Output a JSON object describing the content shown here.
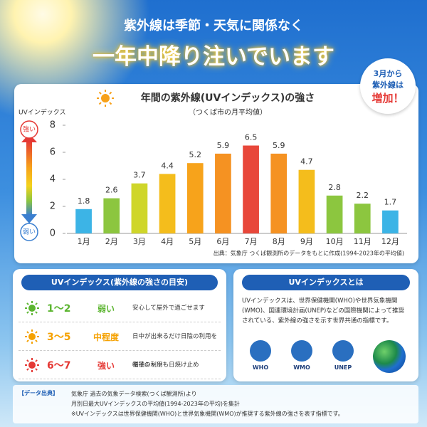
{
  "header": {
    "line1": "紫外線は季節・天気に関係なく",
    "line2": "一年中降り注いでいます"
  },
  "badge": {
    "lines": [
      "3月から",
      "紫外線は",
      "増加！"
    ]
  },
  "chart_data": {
    "type": "bar",
    "title": "年間の紫外線(UVインデックス)の強さ",
    "subtitle": "（つくば市の月平均値）",
    "y_label": "UVインデックス",
    "strong_label": "強い",
    "weak_label": "弱い",
    "categories": [
      "1月",
      "2月",
      "3月",
      "4月",
      "5月",
      "6月",
      "7月",
      "8月",
      "9月",
      "10月",
      "11月",
      "12月"
    ],
    "values": [
      1.8,
      2.6,
      3.7,
      4.4,
      5.2,
      5.9,
      6.5,
      5.9,
      4.7,
      2.8,
      2.2,
      1.7
    ],
    "colors": [
      "#3cb4e6",
      "#8cc63f",
      "#cfd62a",
      "#f4bd1c",
      "#f7a31b",
      "#f59222",
      "#e8473a",
      "#f59222",
      "#f4bd1c",
      "#8cc63f",
      "#8cc63f",
      "#3cb4e6"
    ],
    "ylim": [
      0,
      8
    ],
    "yticks": [
      0,
      2,
      4,
      6,
      8
    ],
    "source": "出典：気象庁 つくば観測所のデータをもとに作成(1994-2023年の平均値)"
  },
  "guide": {
    "title": "UVインデックス(紫外線の強さの目安)",
    "rows": [
      {
        "range": "1〜2",
        "level": "弱い",
        "description": [
          "安心して屋外で過ごせます"
        ],
        "color": "#5cb531"
      },
      {
        "range": "3〜5",
        "level": "中程度",
        "description": [
          "日中が出来るだけ日陰の利用を"
        ],
        "color": "#f5a100"
      },
      {
        "range": "6〜7",
        "level": "強い",
        "description": [
          "長袖シャツ・日焼け止め",
          "帽子の利用も"
        ],
        "color": "#e53935"
      }
    ]
  },
  "about": {
    "title": "UVインデックスとは",
    "body": "UVインデックスは、世界保健機関(WHO)や世界気象機関(WMO)、国連環境計画(UNEP)などの国際機関によって推奨されている、紫外線の強さを示す世界共通の指標です。",
    "logos": [
      "WHO",
      "WMO",
      "UNEP"
    ]
  },
  "footer": {
    "label": "【データ出典】",
    "lines": [
      "気象庁 過去の気象データ検索(つくば観測所)より",
      "月別日最大UVインデックスの平均値(1994-2023年の平均)を集計",
      "※UVインデックスは世界保健機関(WHO)と世界気象機関(WMO)が推奨する紫外線の強さを表す指標です。"
    ]
  }
}
